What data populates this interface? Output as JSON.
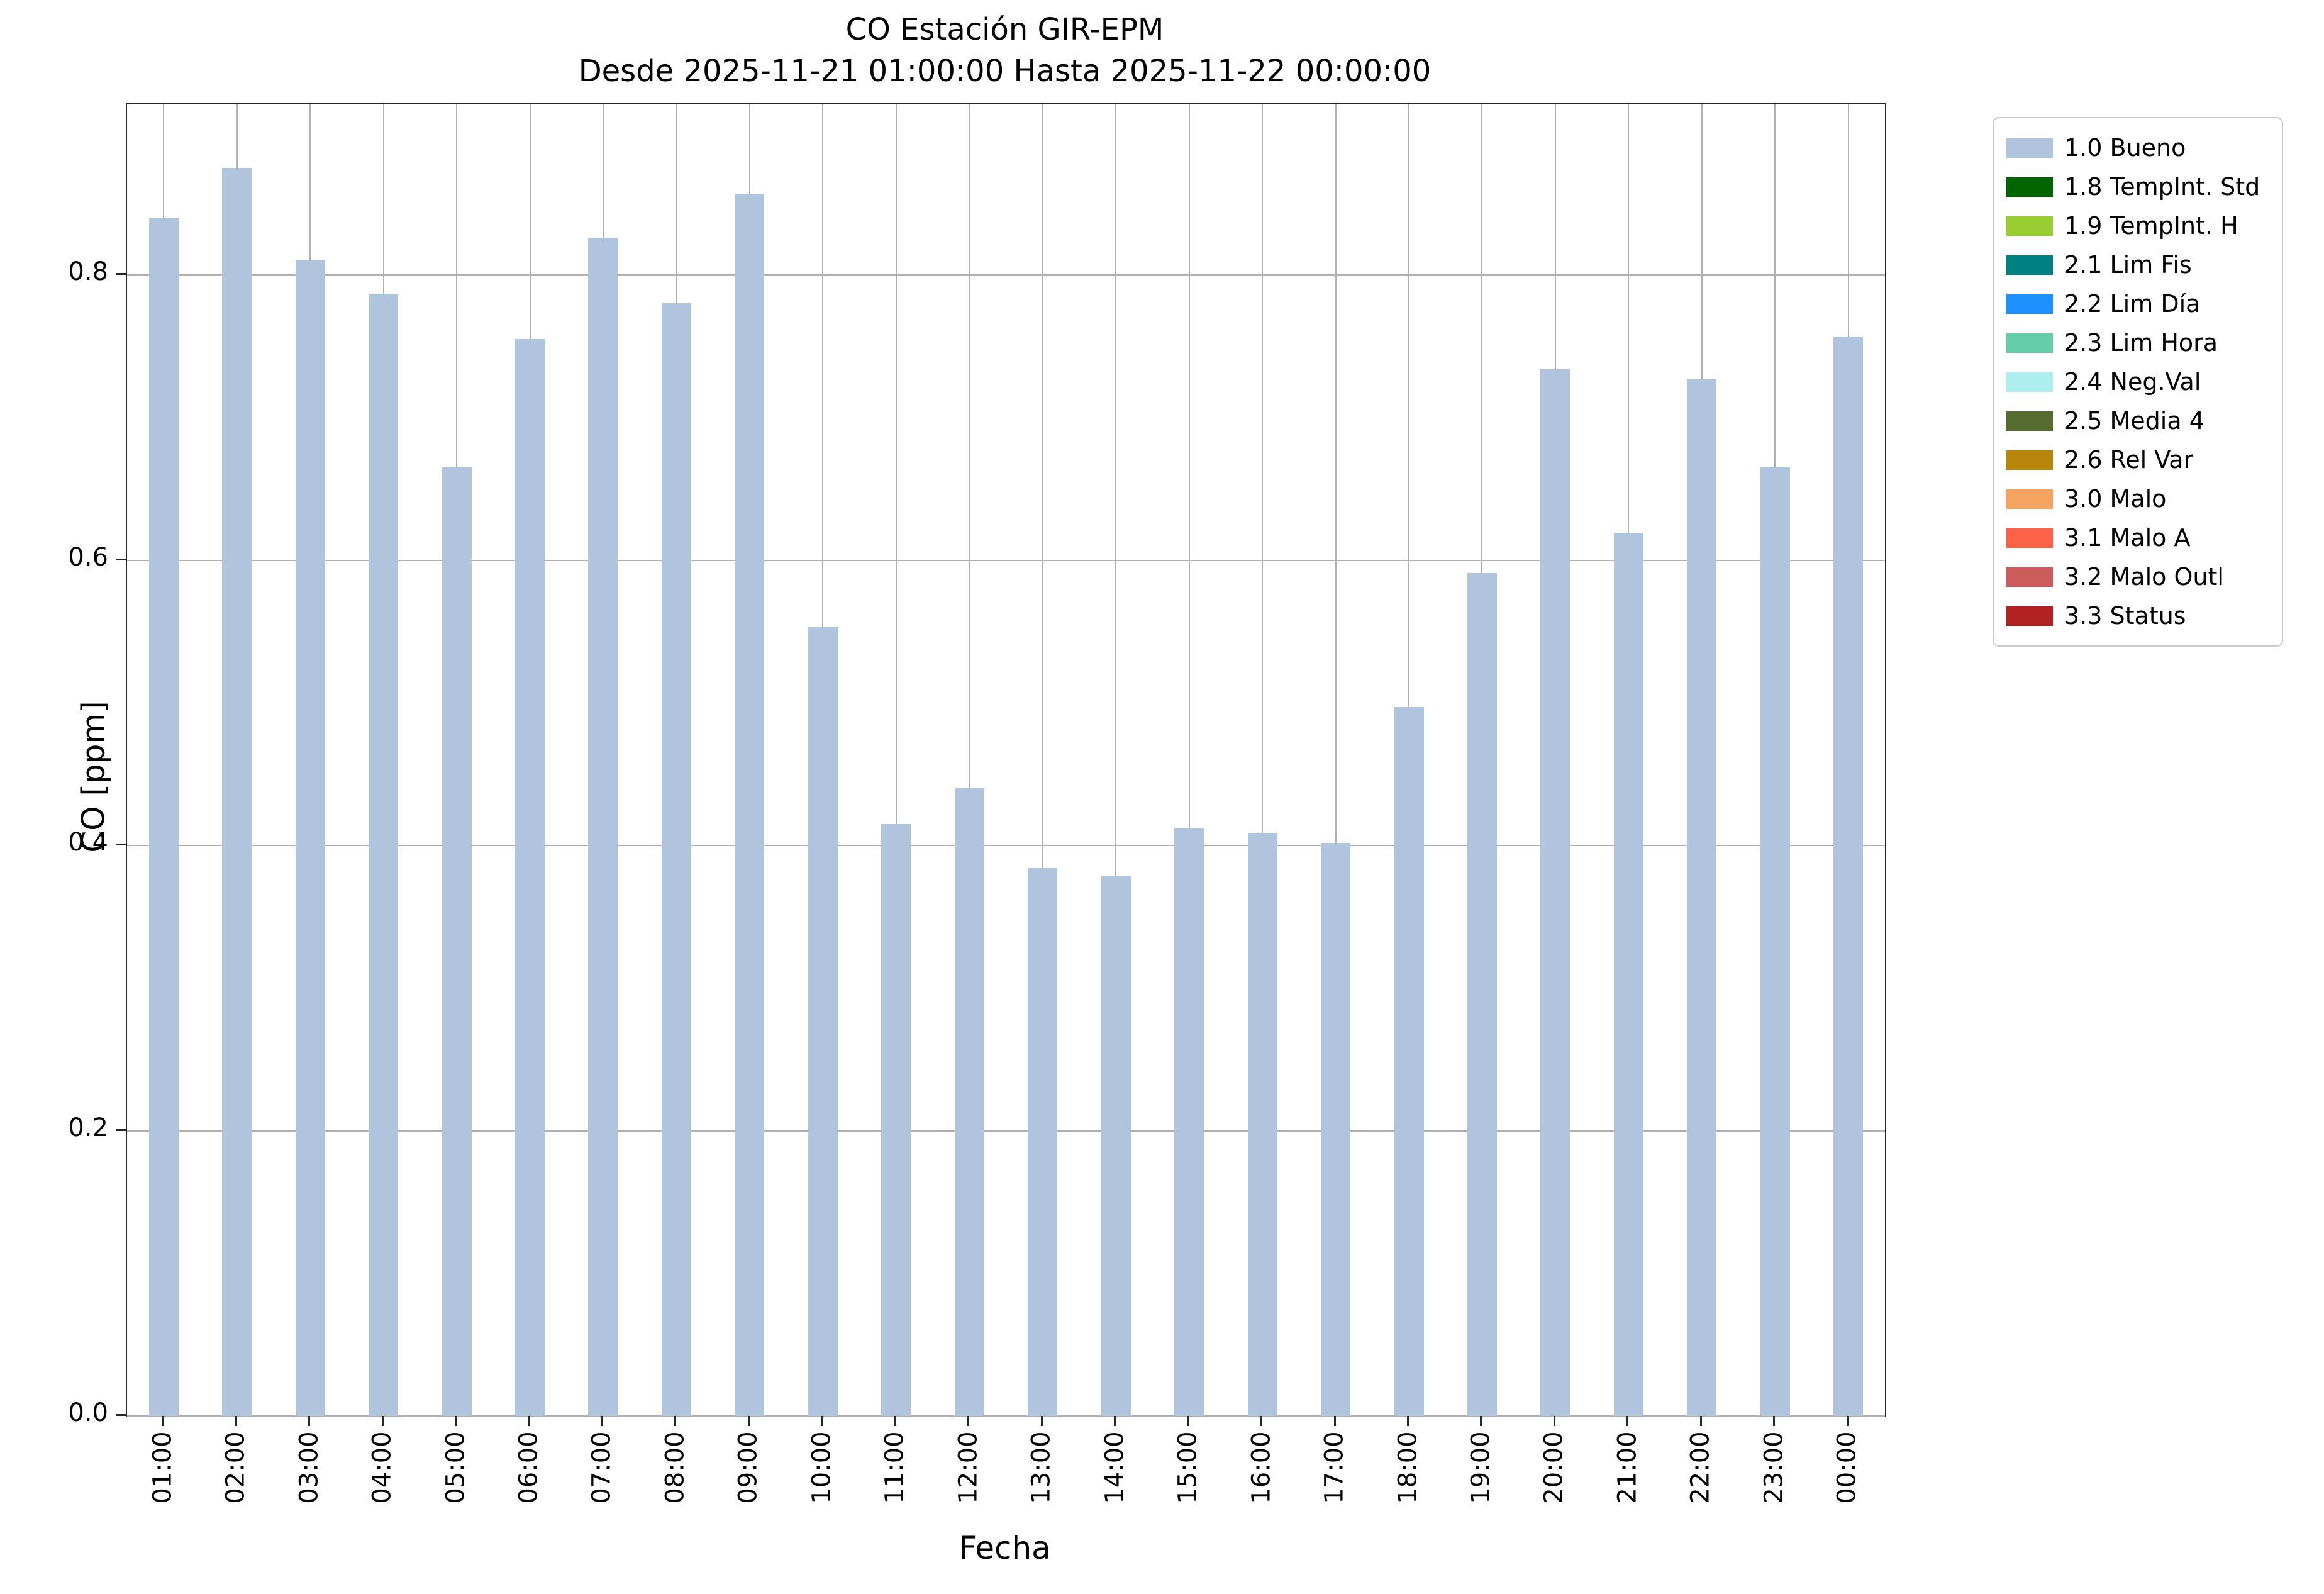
{
  "chart_data": {
    "type": "bar",
    "title": "CO Estación GIR-EPM",
    "subtitle": "Desde 2025-11-21 01:00:00 Hasta 2025-11-22 00:00:00",
    "xlabel": "Fecha",
    "ylabel": "CO [ppm]",
    "ylim": [
      0,
      0.92
    ],
    "yticks": [
      0.0,
      0.2,
      0.4,
      0.6,
      0.8
    ],
    "grid": true,
    "bar_color": "#b0c4de",
    "categories": [
      "01:00",
      "02:00",
      "03:00",
      "04:00",
      "05:00",
      "06:00",
      "07:00",
      "08:00",
      "09:00",
      "10:00",
      "11:00",
      "12:00",
      "13:00",
      "14:00",
      "15:00",
      "16:00",
      "17:00",
      "18:00",
      "19:00",
      "20:00",
      "21:00",
      "22:00",
      "23:00",
      "00:00"
    ],
    "values": [
      0.84,
      0.875,
      0.81,
      0.787,
      0.665,
      0.755,
      0.826,
      0.78,
      0.857,
      0.553,
      0.415,
      0.44,
      0.384,
      0.379,
      0.412,
      0.409,
      0.402,
      0.497,
      0.591,
      0.734,
      0.619,
      0.727,
      0.665,
      0.757
    ],
    "legend": {
      "position": "upper right outside",
      "entries": [
        {
          "label": "1.0 Bueno",
          "color": "#b0c4de"
        },
        {
          "label": "1.8 TempInt. Std",
          "color": "#006400"
        },
        {
          "label": "1.9 TempInt. H",
          "color": "#9acd32"
        },
        {
          "label": "2.1 Lim Fis",
          "color": "#008080"
        },
        {
          "label": "2.2 Lim Día",
          "color": "#1e90ff"
        },
        {
          "label": "2.3 Lim Hora",
          "color": "#66cdaa"
        },
        {
          "label": "2.4 Neg.Val",
          "color": "#afeeee"
        },
        {
          "label": "2.5 Media 4",
          "color": "#556b2f"
        },
        {
          "label": "2.6 Rel Var",
          "color": "#b8860b"
        },
        {
          "label": "3.0 Malo",
          "color": "#f4a460"
        },
        {
          "label": "3.1 Malo A",
          "color": "#ff6347"
        },
        {
          "label": "3.2 Malo Outl",
          "color": "#cd5c5c"
        },
        {
          "label": "3.3 Status",
          "color": "#b22222"
        }
      ]
    }
  }
}
